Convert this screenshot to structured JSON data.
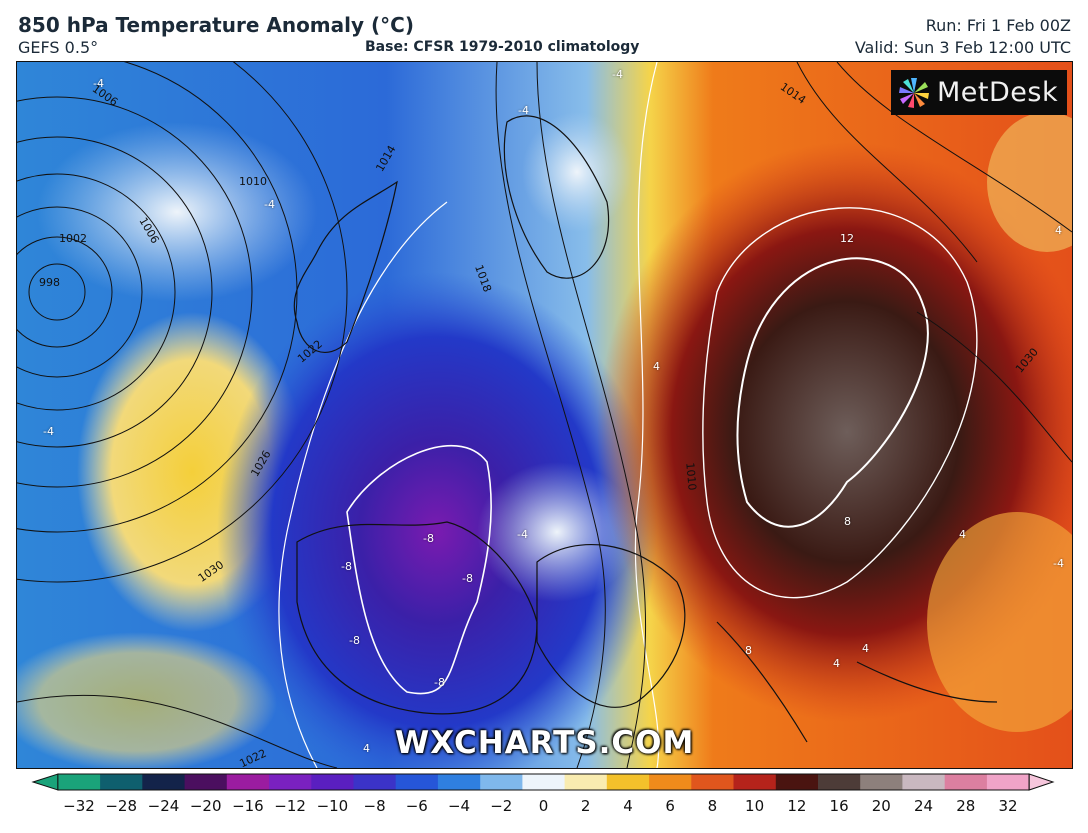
{
  "header": {
    "title": "850 hPa Temperature Anomaly (°C)",
    "model": "GEFS 0.5°",
    "base": "Base: CFSR 1979-2010 climatology",
    "run": "Run: Fri 1 Feb 00Z",
    "valid": "Valid: Sun 3 Feb 12:00 UTC"
  },
  "logo": {
    "text": "MetDesk"
  },
  "watermark": "WXCHARTS.COM",
  "isobar_labels": [
    "1006",
    "1014",
    "1010",
    "1002",
    "1006",
    "998",
    "1018",
    "1022",
    "1026",
    "1030",
    "1014",
    "1030",
    "1022",
    "1010"
  ],
  "anomaly_labels": [
    "-4",
    "-4",
    "-4",
    "-4",
    "-4",
    "12",
    "4",
    "-4",
    "-8",
    "-8",
    "-8",
    "-8",
    "-8",
    "8",
    "8",
    "4",
    "4",
    "4",
    "4",
    "-4",
    "4"
  ],
  "colorbar": {
    "ticks": [
      "−32",
      "−28",
      "−24",
      "−20",
      "−16",
      "−12",
      "−10",
      "−8",
      "−6",
      "−4",
      "−2",
      "0",
      "2",
      "4",
      "6",
      "8",
      "10",
      "12",
      "16",
      "20",
      "24",
      "28",
      "32"
    ],
    "colors": [
      "#1aa37a",
      "#0f5f6e",
      "#13234a",
      "#4b0f5f",
      "#9b1ca0",
      "#7a21c0",
      "#5a1fc0",
      "#3b33c8",
      "#2656d8",
      "#2f7fe0",
      "#7fb8ec",
      "#eef5fb",
      "#f9ecb0",
      "#f3c12b",
      "#ef8b1b",
      "#e0561d",
      "#b5231b",
      "#4a1410",
      "#4d3c38",
      "#8d807c",
      "#c9b8c0",
      "#dc7fa0",
      "#f0a4c8"
    ]
  },
  "colors": {
    "cold_core": "#3a1d8a",
    "warm_core": "#2b1a16",
    "border": "#111111"
  }
}
